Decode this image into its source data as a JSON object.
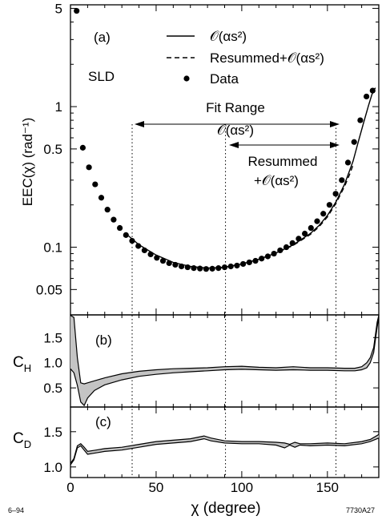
{
  "chart_data": {
    "type": "line",
    "footnote_left": "6–94",
    "footnote_right": "7730A27",
    "xlabel": "χ  (degree)",
    "xlim": [
      0,
      180
    ],
    "x_ticks": [
      0,
      50,
      100,
      150
    ],
    "panels": [
      {
        "id": "a",
        "label": "(a)",
        "experiment": "SLD",
        "ylabel": "EEC(χ)  (rad⁻¹)",
        "yscale": "log",
        "ylim": [
          0.033,
          5.3
        ],
        "y_ticks": [
          {
            "value": 5,
            "label": "5"
          },
          {
            "value": 1,
            "label": "1"
          },
          {
            "value": 0.5,
            "label": "0.5"
          },
          {
            "value": 0.1,
            "label": "0.1"
          },
          {
            "value": 0.05,
            "label": "0.05"
          }
        ],
        "legend": [
          {
            "style": "solid",
            "label": "𝒪(αs²)"
          },
          {
            "style": "dashed",
            "label": "Resummed+𝒪(αs²)"
          },
          {
            "style": "dots",
            "label": "Data"
          }
        ],
        "annotations": {
          "fit_range": "Fit Range",
          "order_label": "𝒪(αs²)",
          "resummed_label_1": "Resummed",
          "resummed_label_2": "+𝒪(αs²)"
        },
        "fit_ranges": [
          {
            "name": "𝒪(αs²)",
            "x": [
              36,
              155
            ]
          },
          {
            "name": "Resummed+𝒪(αs²)",
            "x": [
              90.5,
              155
            ]
          }
        ],
        "series": [
          {
            "name": "Data",
            "style": "dots",
            "x": [
              3.6,
              7.2,
              10.8,
              14.4,
              18.0,
              21.6,
              25.2,
              28.8,
              32.4,
              36.0,
              39.6,
              43.2,
              46.8,
              50.4,
              54.0,
              57.6,
              61.2,
              64.8,
              68.4,
              72.0,
              75.6,
              79.2,
              82.8,
              86.4,
              90.0,
              93.6,
              97.2,
              100.8,
              104.4,
              108.0,
              111.6,
              115.2,
              118.8,
              122.4,
              126.0,
              129.6,
              133.2,
              136.8,
              140.4,
              144.0,
              147.6,
              151.2,
              154.8,
              158.4,
              162.0,
              165.6,
              169.2,
              172.8,
              176.4
            ],
            "y": [
              4.8,
              0.51,
              0.37,
              0.28,
              0.225,
              0.185,
              0.157,
              0.137,
              0.122,
              0.111,
              0.102,
              0.095,
              0.089,
              0.084,
              0.08,
              0.077,
              0.075,
              0.073,
              0.072,
              0.071,
              0.0705,
              0.07,
              0.0703,
              0.071,
              0.072,
              0.073,
              0.074,
              0.076,
              0.078,
              0.08,
              0.083,
              0.086,
              0.09,
              0.095,
              0.1,
              0.107,
              0.115,
              0.125,
              0.137,
              0.153,
              0.173,
              0.2,
              0.24,
              0.3,
              0.4,
              0.56,
              0.8,
              1.18,
              1.3
            ]
          },
          {
            "name": "𝒪(αs²)",
            "style": "solid",
            "x": [
              34,
              40,
              50,
              60,
              70,
              80,
              90,
              100,
              110,
              120,
              130,
              140,
              145,
              150,
              155,
              160,
              165,
              168,
              171,
              174,
              176,
              178
            ],
            "y": [
              0.12,
              0.104,
              0.088,
              0.078,
              0.073,
              0.071,
              0.072,
              0.076,
              0.082,
              0.091,
              0.104,
              0.125,
              0.142,
              0.168,
              0.21,
              0.28,
              0.41,
              0.56,
              0.76,
              1.02,
              1.22,
              1.36
            ]
          },
          {
            "name": "Resummed+𝒪(αs²)",
            "style": "dashed",
            "x": [
              86,
              90,
              100,
              110,
              120,
              130,
              140,
              145,
              150,
              155,
              160,
              163,
              165
            ],
            "y": [
              0.071,
              0.072,
              0.076,
              0.082,
              0.091,
              0.103,
              0.123,
              0.139,
              0.164,
              0.205,
              0.27,
              0.33,
              0.385
            ]
          }
        ]
      },
      {
        "id": "b",
        "label": "(b)",
        "ylabel_main": "C",
        "ylabel_sub": "H",
        "ylim": [
          0.12,
          1.95
        ],
        "y_ticks": [
          {
            "value": 1.5,
            "label": "1.5"
          },
          {
            "value": 1.0,
            "label": "1.0"
          },
          {
            "value": 0.5,
            "label": "0.5"
          }
        ],
        "band": {
          "x": [
            0,
            2,
            4,
            6,
            8,
            10,
            14,
            20,
            30,
            40,
            50,
            60,
            70,
            80,
            90,
            100,
            110,
            120,
            130,
            140,
            150,
            160,
            166,
            170,
            173,
            175,
            177,
            179,
            180
          ],
          "upper": [
            1.95,
            1.9,
            1.1,
            0.6,
            0.58,
            0.6,
            0.64,
            0.7,
            0.78,
            0.83,
            0.86,
            0.88,
            0.89,
            0.9,
            0.92,
            0.93,
            0.91,
            0.9,
            0.92,
            0.9,
            0.9,
            0.89,
            0.89,
            0.92,
            1.0,
            1.1,
            1.3,
            1.8,
            1.95
          ],
          "lower": [
            0.88,
            0.8,
            0.55,
            0.22,
            0.15,
            0.3,
            0.45,
            0.56,
            0.66,
            0.73,
            0.77,
            0.8,
            0.82,
            0.84,
            0.86,
            0.87,
            0.86,
            0.85,
            0.86,
            0.85,
            0.85,
            0.84,
            0.84,
            0.86,
            0.9,
            1.0,
            1.2,
            1.7,
            1.9
          ]
        }
      },
      {
        "id": "c",
        "label": "(c)",
        "ylabel_main": "C",
        "ylabel_sub": "D",
        "ylim": [
          0.85,
          1.85
        ],
        "y_ticks": [
          {
            "value": 1.5,
            "label": "1.5"
          },
          {
            "value": 1.0,
            "label": "1.0"
          }
        ],
        "band": {
          "x": [
            0,
            2,
            4,
            6,
            8,
            10,
            15,
            20,
            30,
            40,
            50,
            60,
            70,
            78,
            82,
            90,
            100,
            110,
            120,
            125,
            128,
            131,
            134,
            140,
            150,
            160,
            170,
            175,
            180
          ],
          "upper": [
            1.05,
            1.12,
            1.3,
            1.33,
            1.28,
            1.22,
            1.24,
            1.26,
            1.28,
            1.32,
            1.36,
            1.38,
            1.4,
            1.44,
            1.41,
            1.37,
            1.36,
            1.36,
            1.35,
            1.34,
            1.32,
            1.35,
            1.33,
            1.33,
            1.34,
            1.33,
            1.36,
            1.39,
            1.46
          ],
          "lower": [
            1.03,
            1.1,
            1.27,
            1.3,
            1.24,
            1.18,
            1.2,
            1.22,
            1.24,
            1.28,
            1.32,
            1.34,
            1.36,
            1.4,
            1.37,
            1.34,
            1.33,
            1.33,
            1.31,
            1.27,
            1.31,
            1.28,
            1.31,
            1.3,
            1.31,
            1.3,
            1.33,
            1.36,
            1.41
          ]
        }
      }
    ]
  }
}
